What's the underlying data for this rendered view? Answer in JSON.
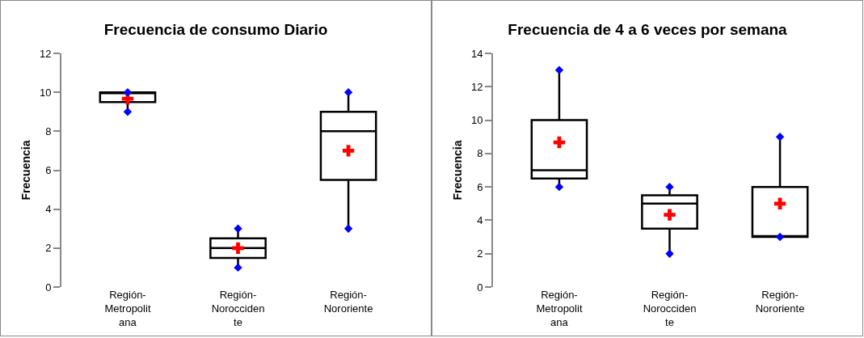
{
  "chart_data": [
    {
      "type": "box",
      "title": "Frecuencia de consumo Diario",
      "ylabel": "Frecuencia",
      "categories": [
        "Región-Metropolitana",
        "Región-Noroccidente",
        "Región-Nororiente"
      ],
      "ylim": [
        0,
        12
      ],
      "yticks": [
        0,
        2,
        4,
        6,
        8,
        10,
        12
      ],
      "grid": false,
      "boxes": [
        {
          "low": 9,
          "q1": 9.5,
          "median": 10,
          "q3": 10,
          "high": 10
        },
        {
          "low": 1,
          "q1": 1.5,
          "median": 2,
          "q3": 2.5,
          "high": 3
        },
        {
          "low": 3,
          "q1": 5.5,
          "median": 8,
          "q3": 9,
          "high": 10
        }
      ],
      "series": [
        {
          "type": "scatter",
          "color": "#ff0000",
          "marker": "cross",
          "x": [
            "Región-Metropolitana",
            "Región-Noroccidente",
            "Región-Nororiente"
          ],
          "values": [
            9.67,
            2,
            7
          ]
        },
        {
          "type": "scatter",
          "color": "#0000ff",
          "marker": "diamond",
          "x": [
            "Región-Metropolitana",
            "Región-Noroccidente",
            "Región-Nororiente"
          ],
          "values": [
            9,
            1,
            3
          ]
        },
        {
          "type": "scatter",
          "color": "#0000ff",
          "marker": "diamond",
          "x": [
            "Región-Metropolitana",
            "Región-Noroccidente",
            "Región-Nororiente"
          ],
          "values": [
            10,
            3,
            10
          ]
        }
      ]
    },
    {
      "type": "box",
      "title": "Frecuencia de 4 a 6 veces por semana",
      "ylabel": "Frecuencia",
      "categories": [
        "Región-Metropolitana",
        "Región-Noroccidente",
        "Región-Nororiente"
      ],
      "ylim": [
        0,
        14
      ],
      "yticks": [
        0,
        2,
        4,
        6,
        8,
        10,
        12,
        14
      ],
      "grid": false,
      "boxes": [
        {
          "low": 6,
          "q1": 6.5,
          "median": 7,
          "q3": 10,
          "high": 13
        },
        {
          "low": 2,
          "q1": 3.5,
          "median": 5,
          "q3": 5.5,
          "high": 6
        },
        {
          "low": 3,
          "q1": 3,
          "median": 3,
          "q3": 6,
          "high": 9
        }
      ],
      "series": [
        {
          "type": "scatter",
          "color": "#ff0000",
          "marker": "cross",
          "x": [
            "Región-Metropolitana",
            "Región-Noroccidente",
            "Región-Nororiente"
          ],
          "values": [
            8.67,
            4.33,
            5
          ]
        },
        {
          "type": "scatter",
          "color": "#0000ff",
          "marker": "diamond",
          "x": [
            "Región-Metropolitana",
            "Región-Noroccidente",
            "Región-Nororiente"
          ],
          "values": [
            6,
            2,
            3
          ]
        },
        {
          "type": "scatter",
          "color": "#0000ff",
          "marker": "diamond",
          "x": [
            "Región-Metropolitana",
            "Región-Noroccidente",
            "Región-Nororiente"
          ],
          "values": [
            13,
            6,
            9
          ]
        }
      ]
    }
  ]
}
